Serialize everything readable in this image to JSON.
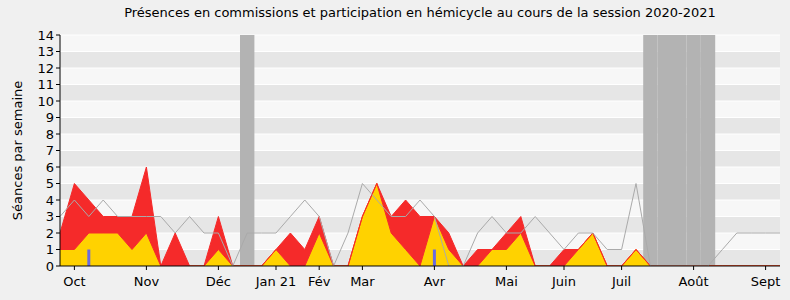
{
  "chart_data": {
    "type": "area",
    "title": "Présences en commissions et participation en hémicycle au cours de la session 2020-2021",
    "ylabel": "Séances par semaine",
    "categories": [
      null,
      "Oct",
      null,
      null,
      null,
      null,
      "Nov",
      null,
      null,
      null,
      null,
      "Déc",
      null,
      null,
      null,
      "Jan 21",
      null,
      null,
      "Fév",
      null,
      null,
      "Mar",
      null,
      null,
      null,
      null,
      "Avr",
      null,
      null,
      null,
      null,
      "Mai",
      null,
      null,
      null,
      "Juin",
      null,
      null,
      null,
      "Juil",
      null,
      null,
      null,
      null,
      "Août",
      null,
      null,
      null,
      null,
      "Sept",
      null
    ],
    "series": [
      {
        "type": "area",
        "color": "#ffd200",
        "values": [
          1,
          1,
          2,
          2,
          2,
          1,
          2,
          0,
          0,
          0,
          0,
          1,
          0,
          0,
          0,
          1,
          0,
          0,
          2,
          0,
          0,
          3,
          5,
          2,
          1,
          0,
          3,
          1,
          0,
          0,
          1,
          1,
          2,
          0,
          0,
          0,
          1,
          2,
          0,
          0,
          1,
          0,
          0,
          0,
          0,
          0,
          0,
          0,
          0,
          0,
          0
        ]
      },
      {
        "type": "area",
        "color": "#f52a2a",
        "values": [
          1,
          4,
          2,
          1,
          1,
          2,
          4,
          0,
          2,
          0,
          0,
          2,
          0,
          0,
          0,
          0,
          2,
          1,
          1,
          0,
          0,
          0,
          0,
          1,
          3,
          3,
          0,
          1,
          0,
          1,
          0,
          1,
          1,
          0,
          0,
          1,
          0,
          0,
          0,
          0,
          0,
          0,
          0,
          0,
          0,
          0,
          0,
          0,
          0,
          0,
          0
        ]
      },
      {
        "type": "line",
        "color": "#aaaaaa",
        "values": [
          3,
          4,
          3,
          4,
          3,
          3,
          3,
          3,
          2,
          3,
          2,
          2,
          0,
          2,
          2,
          2,
          3,
          4,
          3,
          0,
          2,
          5,
          4,
          3,
          3,
          4,
          3,
          0,
          0,
          2,
          3,
          2,
          2,
          3,
          2,
          1,
          2,
          2,
          1,
          1,
          5,
          0,
          0,
          0,
          0,
          0,
          1,
          2,
          2,
          2,
          2
        ]
      },
      {
        "type": "bar",
        "color": "#6b6bdf",
        "values": [
          null,
          null,
          1,
          null,
          null,
          null,
          null,
          null,
          null,
          null,
          null,
          null,
          null,
          null,
          null,
          null,
          null,
          null,
          null,
          null,
          null,
          null,
          null,
          null,
          null,
          null,
          1,
          null,
          null,
          null,
          null,
          null,
          null,
          null,
          null,
          null,
          null,
          null,
          null,
          null,
          null,
          null,
          null,
          null,
          null,
          null,
          null,
          null,
          null,
          null,
          null
        ]
      },
      {
        "type": "band",
        "color": "#b3b3b3",
        "values": [
          null,
          null,
          null,
          null,
          null,
          null,
          null,
          null,
          null,
          null,
          null,
          null,
          null,
          14,
          null,
          null,
          null,
          null,
          null,
          null,
          null,
          null,
          null,
          null,
          null,
          null,
          null,
          null,
          null,
          null,
          null,
          null,
          null,
          null,
          null,
          null,
          null,
          null,
          null,
          null,
          null,
          14,
          14,
          14,
          14,
          14,
          null,
          null,
          null,
          null,
          null
        ]
      }
    ],
    "stacked": true,
    "ylim": [
      0,
      14
    ],
    "yticks": [
      0,
      1,
      2,
      3,
      4,
      5,
      6,
      7,
      8,
      9,
      10,
      11,
      12,
      13,
      14
    ],
    "grid": true
  }
}
